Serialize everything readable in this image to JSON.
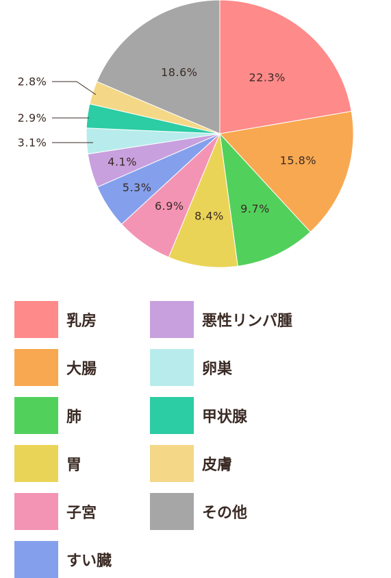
{
  "chart_data": {
    "type": "pie",
    "start_angle_deg": 0,
    "direction": "clockwise",
    "slices": [
      {
        "name": "乳房",
        "value": 22.3,
        "label": "22.3%",
        "color": "#ff8a8a"
      },
      {
        "name": "大腸",
        "value": 15.8,
        "label": "15.8%",
        "color": "#f8a850"
      },
      {
        "name": "肺",
        "value": 9.7,
        "label": "9.7%",
        "color": "#52d05c"
      },
      {
        "name": "胃",
        "value": 8.4,
        "label": "8.4%",
        "color": "#ead457"
      },
      {
        "name": "子宮",
        "value": 6.9,
        "label": "6.9%",
        "color": "#f494b4"
      },
      {
        "name": "すい臓",
        "value": 5.3,
        "label": "5.3%",
        "color": "#84a0ec"
      },
      {
        "name": "悪性リンパ腫",
        "value": 4.1,
        "label": "4.1%",
        "color": "#c8a0de"
      },
      {
        "name": "卵巣",
        "value": 3.1,
        "label": "3.1%",
        "color": "#b8ecec"
      },
      {
        "name": "甲状腺",
        "value": 2.9,
        "label": "2.9%",
        "color": "#2ccca4"
      },
      {
        "name": "皮膚",
        "value": 2.8,
        "label": "2.8%",
        "color": "#f4d888"
      },
      {
        "name": "その他",
        "value": 18.6,
        "label": "18.6%",
        "color": "#a6a6a6"
      }
    ],
    "legend_placement": "bottom"
  }
}
